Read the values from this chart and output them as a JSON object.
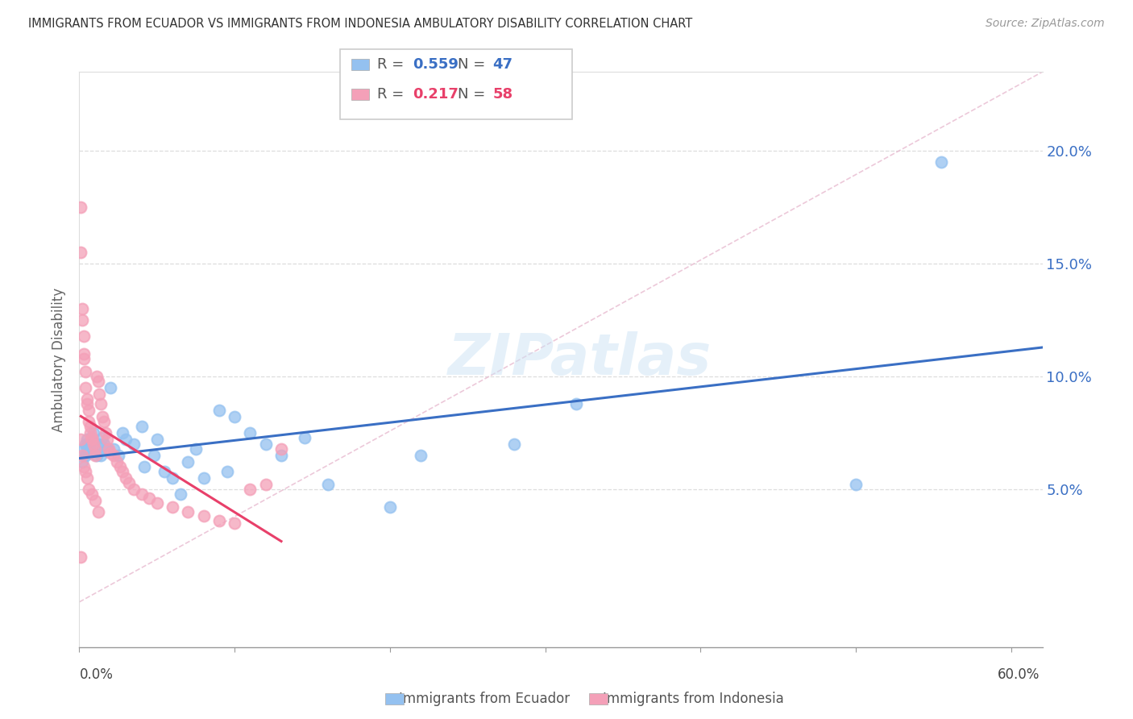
{
  "title": "IMMIGRANTS FROM ECUADOR VS IMMIGRANTS FROM INDONESIA AMBULATORY DISABILITY CORRELATION CHART",
  "source": "Source: ZipAtlas.com",
  "ylabel": "Ambulatory Disability",
  "ytick_values": [
    0.05,
    0.1,
    0.15,
    0.2
  ],
  "ytick_labels": [
    "5.0%",
    "10.0%",
    "15.0%",
    "20.0%"
  ],
  "xlim": [
    0.0,
    0.62
  ],
  "ylim": [
    -0.02,
    0.235
  ],
  "ecuador_R": 0.559,
  "ecuador_N": 47,
  "indonesia_R": 0.217,
  "indonesia_N": 58,
  "ecuador_color": "#94C1F0",
  "indonesia_color": "#F4A0B8",
  "ecuador_line_color": "#3A6FC4",
  "indonesia_line_color": "#E8406A",
  "diagonal_color": "#DDDDDD",
  "ecuador_x": [
    0.002,
    0.003,
    0.004,
    0.004,
    0.005,
    0.005,
    0.006,
    0.007,
    0.008,
    0.009,
    0.01,
    0.011,
    0.012,
    0.014,
    0.015,
    0.016,
    0.018,
    0.02,
    0.022,
    0.025,
    0.028,
    0.03,
    0.035,
    0.04,
    0.042,
    0.048,
    0.05,
    0.055,
    0.06,
    0.065,
    0.07,
    0.075,
    0.08,
    0.09,
    0.095,
    0.1,
    0.11,
    0.12,
    0.13,
    0.145,
    0.16,
    0.2,
    0.22,
    0.28,
    0.32,
    0.5,
    0.555
  ],
  "ecuador_y": [
    0.062,
    0.068,
    0.065,
    0.07,
    0.072,
    0.068,
    0.07,
    0.066,
    0.072,
    0.075,
    0.068,
    0.065,
    0.07,
    0.065,
    0.073,
    0.07,
    0.068,
    0.095,
    0.068,
    0.065,
    0.075,
    0.072,
    0.07,
    0.078,
    0.06,
    0.065,
    0.072,
    0.058,
    0.055,
    0.048,
    0.062,
    0.068,
    0.055,
    0.085,
    0.058,
    0.082,
    0.075,
    0.07,
    0.065,
    0.073,
    0.052,
    0.042,
    0.065,
    0.07,
    0.088,
    0.052,
    0.195
  ],
  "indonesia_x": [
    0.001,
    0.001,
    0.002,
    0.002,
    0.003,
    0.003,
    0.003,
    0.004,
    0.004,
    0.005,
    0.005,
    0.006,
    0.006,
    0.007,
    0.007,
    0.008,
    0.008,
    0.009,
    0.01,
    0.01,
    0.011,
    0.012,
    0.013,
    0.014,
    0.015,
    0.016,
    0.017,
    0.018,
    0.019,
    0.02,
    0.022,
    0.024,
    0.026,
    0.028,
    0.03,
    0.032,
    0.035,
    0.04,
    0.045,
    0.05,
    0.06,
    0.07,
    0.08,
    0.09,
    0.1,
    0.11,
    0.12,
    0.13,
    0.001,
    0.002,
    0.003,
    0.004,
    0.005,
    0.006,
    0.008,
    0.01,
    0.012,
    0.001
  ],
  "indonesia_y": [
    0.175,
    0.155,
    0.13,
    0.125,
    0.118,
    0.11,
    0.108,
    0.102,
    0.095,
    0.09,
    0.088,
    0.085,
    0.08,
    0.078,
    0.075,
    0.073,
    0.072,
    0.07,
    0.068,
    0.065,
    0.1,
    0.098,
    0.092,
    0.088,
    0.082,
    0.08,
    0.075,
    0.072,
    0.068,
    0.066,
    0.065,
    0.062,
    0.06,
    0.058,
    0.055,
    0.053,
    0.05,
    0.048,
    0.046,
    0.044,
    0.042,
    0.04,
    0.038,
    0.036,
    0.035,
    0.05,
    0.052,
    0.068,
    0.072,
    0.065,
    0.06,
    0.058,
    0.055,
    0.05,
    0.048,
    0.045,
    0.04,
    0.02
  ]
}
